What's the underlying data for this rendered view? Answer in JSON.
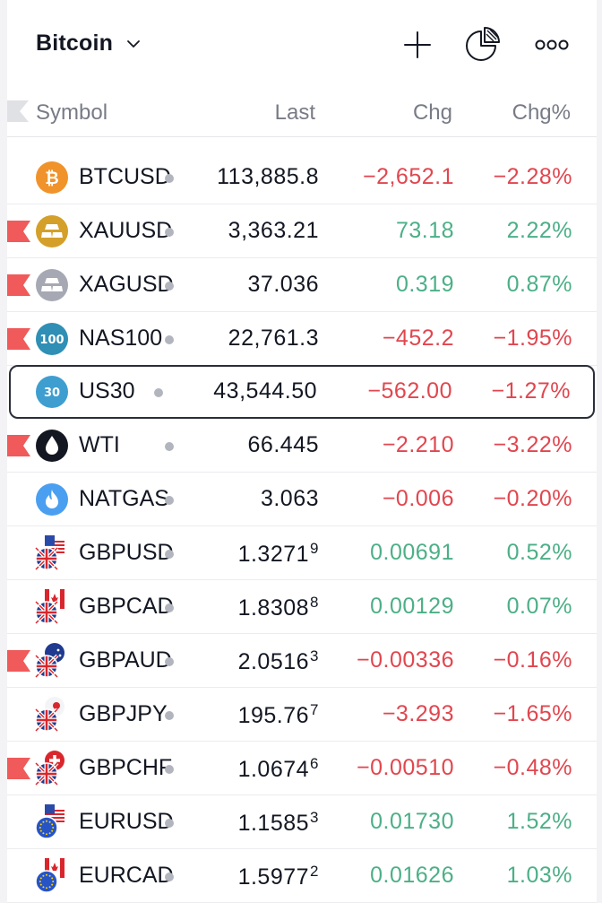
{
  "header": {
    "title": "Bitcoin",
    "icons": [
      "add-icon",
      "pie-chart-icon",
      "more-icon"
    ]
  },
  "columns": {
    "symbol": "Symbol",
    "last": "Last",
    "chg": "Chg",
    "chgp": "Chg%"
  },
  "colors": {
    "up": "#4caf87",
    "down": "#e1464f",
    "flag": "#f05a5a"
  },
  "rows": [
    {
      "symbol": "BTCUSD",
      "last": "113,885.8",
      "last_sup": "",
      "chg": "−2,652.1",
      "chgp": "−2.28%",
      "dir": "down",
      "flag": false,
      "logo": "bitcoin-icon",
      "selected": false
    },
    {
      "symbol": "XAUUSD",
      "last": "3,363.21",
      "last_sup": "",
      "chg": "73.18",
      "chgp": "2.22%",
      "dir": "up",
      "flag": true,
      "logo": "gold-bars-icon",
      "selected": false
    },
    {
      "symbol": "XAGUSD",
      "last": "37.036",
      "last_sup": "",
      "chg": "0.319",
      "chgp": "0.87%",
      "dir": "up",
      "flag": true,
      "logo": "silver-bars-icon",
      "selected": false
    },
    {
      "symbol": "NAS100",
      "last": "22,761.3",
      "last_sup": "",
      "chg": "−452.2",
      "chgp": "−1.95%",
      "dir": "down",
      "flag": true,
      "logo": "nas100-icon",
      "selected": false
    },
    {
      "symbol": "US30",
      "last": "43,544.50",
      "last_sup": "",
      "chg": "−562.00",
      "chgp": "−1.27%",
      "dir": "down",
      "flag": false,
      "logo": "us30-icon",
      "selected": true
    },
    {
      "symbol": "WTI",
      "last": "66.445",
      "last_sup": "",
      "chg": "−2.210",
      "chgp": "−3.22%",
      "dir": "down",
      "flag": true,
      "logo": "oil-drop-icon",
      "selected": false
    },
    {
      "symbol": "NATGAS",
      "last": "3.063",
      "last_sup": "",
      "chg": "−0.006",
      "chgp": "−0.20%",
      "dir": "down",
      "flag": false,
      "logo": "gas-flame-icon",
      "selected": false
    },
    {
      "symbol": "GBPUSD",
      "last": "1.3271",
      "last_sup": "9",
      "chg": "0.00691",
      "chgp": "0.52%",
      "dir": "up",
      "flag": false,
      "logo": "gb-us-flags-icon",
      "selected": false
    },
    {
      "symbol": "GBPCAD",
      "last": "1.8308",
      "last_sup": "8",
      "chg": "0.00129",
      "chgp": "0.07%",
      "dir": "up",
      "flag": false,
      "logo": "gb-ca-flags-icon",
      "selected": false
    },
    {
      "symbol": "GBPAUD",
      "last": "2.0516",
      "last_sup": "3",
      "chg": "−0.00336",
      "chgp": "−0.16%",
      "dir": "down",
      "flag": true,
      "logo": "gb-au-flags-icon",
      "selected": false
    },
    {
      "symbol": "GBPJPY",
      "last": "195.76",
      "last_sup": "7",
      "chg": "−3.293",
      "chgp": "−1.65%",
      "dir": "down",
      "flag": false,
      "logo": "gb-jp-flags-icon",
      "selected": false
    },
    {
      "symbol": "GBPCHF",
      "last": "1.0674",
      "last_sup": "6",
      "chg": "−0.00510",
      "chgp": "−0.48%",
      "dir": "down",
      "flag": true,
      "logo": "gb-ch-flags-icon",
      "selected": false
    },
    {
      "symbol": "EURUSD",
      "last": "1.1585",
      "last_sup": "3",
      "chg": "0.01730",
      "chgp": "1.52%",
      "dir": "up",
      "flag": false,
      "logo": "eu-us-flags-icon",
      "selected": false
    },
    {
      "symbol": "EURCAD",
      "last": "1.5977",
      "last_sup": "2",
      "chg": "0.01626",
      "chgp": "1.03%",
      "dir": "up",
      "flag": false,
      "logo": "eu-ca-flags-icon",
      "selected": false
    }
  ]
}
